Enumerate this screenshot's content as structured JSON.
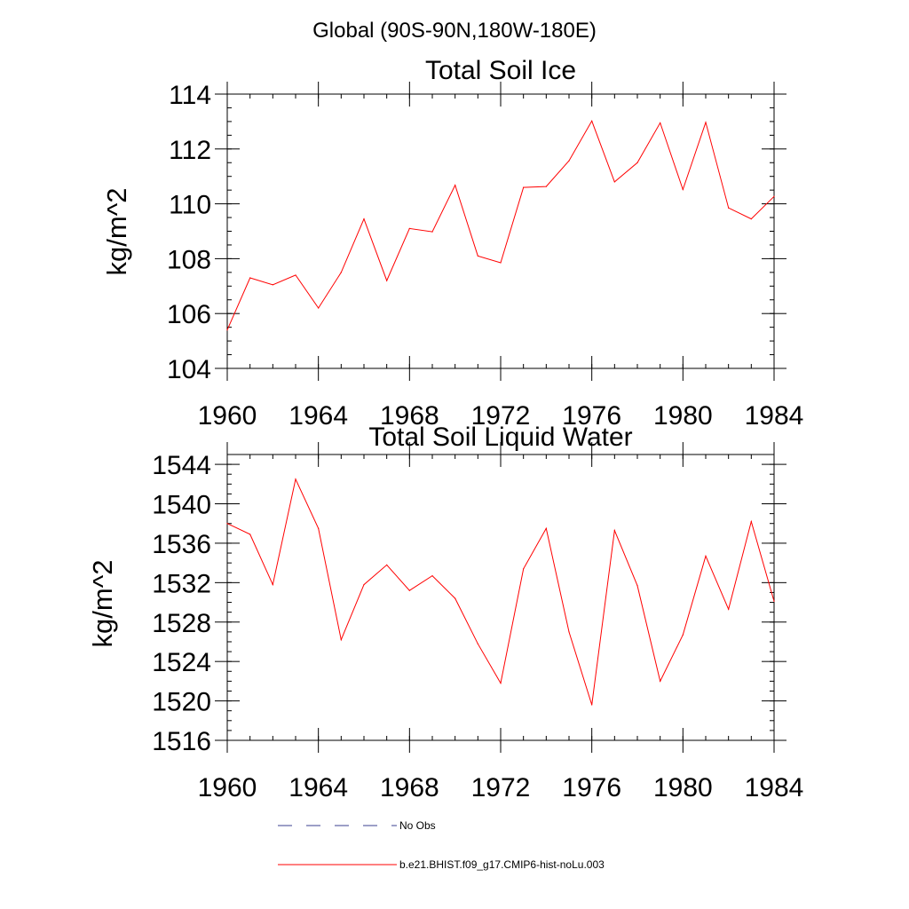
{
  "suptitle": "Global (90S-90N,180W-180E)",
  "chart_data": [
    {
      "type": "line",
      "title": "Total Soil Ice",
      "xlabel": "",
      "ylabel": "kg/m^2",
      "xlim": [
        1960,
        1984
      ],
      "ylim": [
        104,
        114
      ],
      "xticks": [
        1960,
        1964,
        1968,
        1972,
        1976,
        1980,
        1984
      ],
      "yticks": [
        104,
        106,
        108,
        110,
        112,
        114
      ],
      "grid": false,
      "series": [
        {
          "name": "b.e21.BHIST.f09_g17.CMIP6-hist-noLu.003",
          "color": "#ff0000",
          "x": [
            1960,
            1961,
            1962,
            1963,
            1964,
            1965,
            1966,
            1967,
            1968,
            1969,
            1970,
            1971,
            1972,
            1973,
            1974,
            1975,
            1976,
            1977,
            1978,
            1979,
            1980,
            1981,
            1982,
            1983,
            1984
          ],
          "y": [
            105.4,
            107.3,
            107.05,
            107.4,
            106.2,
            107.5,
            109.45,
            107.2,
            109.1,
            108.98,
            110.68,
            108.1,
            107.85,
            110.6,
            110.63,
            111.57,
            113.02,
            110.8,
            111.5,
            112.95,
            110.52,
            112.97,
            109.85,
            109.45,
            110.27
          ]
        }
      ]
    },
    {
      "type": "line",
      "title": "Total Soil Liquid Water",
      "xlabel": "",
      "ylabel": "kg/m^2",
      "xlim": [
        1960,
        1984
      ],
      "ylim": [
        1516,
        1545
      ],
      "xticks": [
        1960,
        1964,
        1968,
        1972,
        1976,
        1980,
        1984
      ],
      "yticks": [
        1516,
        1520,
        1524,
        1528,
        1532,
        1536,
        1540,
        1544
      ],
      "grid": false,
      "series": [
        {
          "name": "b.e21.BHIST.f09_g17.CMIP6-hist-noLu.003",
          "color": "#ff0000",
          "x": [
            1960,
            1961,
            1962,
            1963,
            1964,
            1965,
            1966,
            1967,
            1968,
            1969,
            1970,
            1971,
            1972,
            1973,
            1974,
            1975,
            1976,
            1977,
            1978,
            1979,
            1980,
            1981,
            1982,
            1983,
            1984
          ],
          "y": [
            1538.0,
            1536.9,
            1531.8,
            1542.5,
            1537.5,
            1526.2,
            1531.8,
            1533.8,
            1531.2,
            1532.7,
            1530.4,
            1525.8,
            1521.8,
            1533.4,
            1537.5,
            1527.0,
            1519.6,
            1537.3,
            1531.7,
            1522.0,
            1526.7,
            1534.7,
            1529.3,
            1538.2,
            1530.1
          ]
        }
      ]
    }
  ],
  "legend": {
    "placement": "bottom",
    "items": [
      {
        "label": "No Obs",
        "style": "dashed",
        "color": "#3b3f8f"
      },
      {
        "label": "b.e21.BHIST.f09_g17.CMIP6-hist-noLu.003",
        "style": "solid",
        "color": "#ff0000"
      }
    ]
  }
}
